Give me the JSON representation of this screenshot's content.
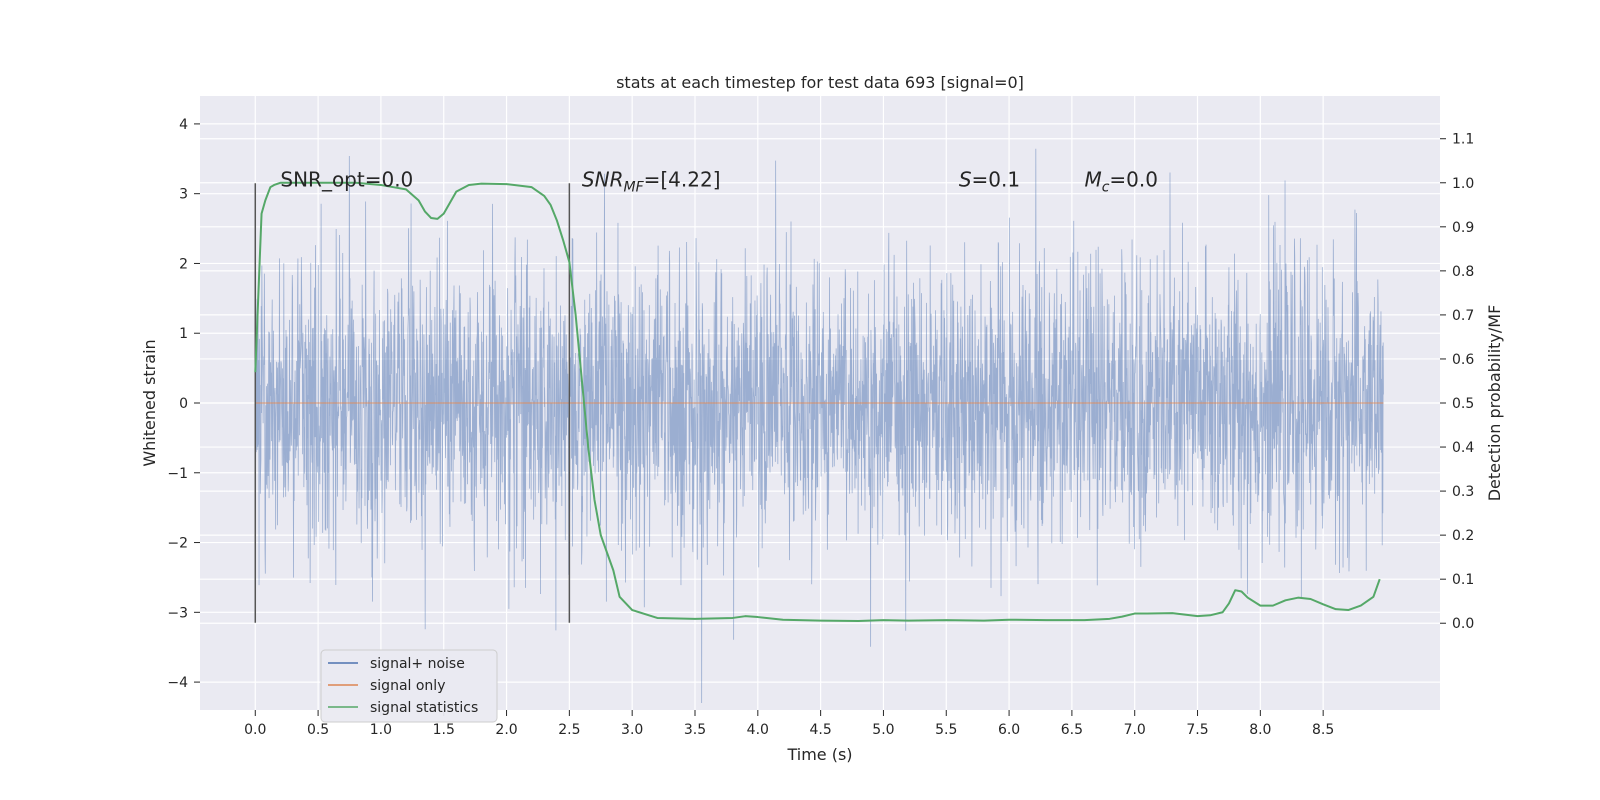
{
  "chart_data": {
    "type": "line",
    "title": "stats at each timestep for test data 693 [signal=0]",
    "xlabel": "Time (s)",
    "ylabel": "Whitened strain",
    "y2label": "Detection probability/MF",
    "xlim": [
      -0.44,
      9.43
    ],
    "ylim": [
      -4.4,
      4.4
    ],
    "y2lim": [
      -0.197,
      1.197
    ],
    "x_ticks": [
      0.0,
      0.5,
      1.0,
      1.5,
      2.0,
      2.5,
      3.0,
      3.5,
      4.0,
      4.5,
      5.0,
      5.5,
      6.0,
      6.5,
      7.0,
      7.5,
      8.0,
      8.5
    ],
    "x_tick_labels": [
      "0.0",
      "0.5",
      "1.0",
      "1.5",
      "2.0",
      "2.5",
      "3.0",
      "3.5",
      "4.0",
      "4.5",
      "5.0",
      "5.5",
      "6.0",
      "6.5",
      "7.0",
      "7.5",
      "8.0",
      "8.5"
    ],
    "y_ticks": [
      -4,
      -3,
      -2,
      -1,
      0,
      1,
      2,
      3,
      4
    ],
    "y_tick_labels": [
      "−4",
      "−3",
      "−2",
      "−1",
      "0",
      "1",
      "2",
      "3",
      "4"
    ],
    "y2_ticks": [
      0.0,
      0.1,
      0.2,
      0.3,
      0.4,
      0.5,
      0.6,
      0.7,
      0.8,
      0.9,
      1.0,
      1.1
    ],
    "y2_tick_labels": [
      "0.0",
      "0.1",
      "0.2",
      "0.3",
      "0.4",
      "0.5",
      "0.6",
      "0.7",
      "0.8",
      "0.9",
      "1.0",
      "1.1"
    ],
    "grid": true,
    "legend_position": "lower-left",
    "annotations": [
      {
        "text": "SNR_opt=0.0",
        "x": 0.2,
        "y": 3.2
      },
      {
        "text": "SNR_MF=[4.22]",
        "x": 2.6,
        "y": 3.2
      },
      {
        "text": "S=0.1",
        "x": 5.6,
        "y": 3.2
      },
      {
        "text": "M_c=0.0",
        "x": 6.6,
        "y": 3.2
      }
    ],
    "vlines": [
      {
        "x": 0.0,
        "ymin": -3.15,
        "ymax": 3.15,
        "color": "#555555"
      },
      {
        "x": 2.5,
        "ymin": -3.15,
        "ymax": 3.15,
        "color": "#555555"
      }
    ],
    "series": [
      {
        "name": "signal+ noise",
        "axis": "left",
        "color": "#4c72b0",
        "kind": "noise",
        "x_range": [
          0.0,
          8.98
        ],
        "sigma": 1.0,
        "peak_max": 4.03,
        "peak_min": -4.3
      },
      {
        "name": "signal only",
        "axis": "left",
        "color": "#dd8452",
        "x": [
          0.0,
          8.98
        ],
        "y": [
          0.0,
          0.0
        ]
      },
      {
        "name": "signal statistics",
        "axis": "right",
        "color": "#55a868",
        "x": [
          0.0,
          0.05,
          0.08,
          0.12,
          0.15,
          0.2,
          0.3,
          0.5,
          0.8,
          1.0,
          1.1,
          1.2,
          1.3,
          1.35,
          1.4,
          1.45,
          1.5,
          1.55,
          1.6,
          1.7,
          1.8,
          2.0,
          2.2,
          2.3,
          2.35,
          2.4,
          2.45,
          2.5,
          2.55,
          2.6,
          2.65,
          2.7,
          2.75,
          2.8,
          2.85,
          2.9,
          3.0,
          3.2,
          3.5,
          3.8,
          3.9,
          4.0,
          4.2,
          4.5,
          4.8,
          5.0,
          5.2,
          5.5,
          5.8,
          6.0,
          6.3,
          6.6,
          6.8,
          6.9,
          7.0,
          7.1,
          7.3,
          7.5,
          7.6,
          7.7,
          7.75,
          7.8,
          7.85,
          7.9,
          8.0,
          8.1,
          8.2,
          8.3,
          8.4,
          8.5,
          8.6,
          8.7,
          8.8,
          8.9,
          8.95
        ],
        "y": [
          0.57,
          0.93,
          0.96,
          0.99,
          0.995,
          1.0,
          1.0,
          1.0,
          1.0,
          0.995,
          0.99,
          0.985,
          0.96,
          0.935,
          0.92,
          0.918,
          0.93,
          0.955,
          0.98,
          0.995,
          0.998,
          0.997,
          0.99,
          0.97,
          0.95,
          0.915,
          0.87,
          0.82,
          0.7,
          0.55,
          0.4,
          0.28,
          0.2,
          0.16,
          0.12,
          0.06,
          0.03,
          0.012,
          0.01,
          0.012,
          0.016,
          0.014,
          0.008,
          0.006,
          0.005,
          0.007,
          0.006,
          0.007,
          0.006,
          0.008,
          0.007,
          0.007,
          0.01,
          0.015,
          0.022,
          0.022,
          0.023,
          0.016,
          0.018,
          0.025,
          0.045,
          0.075,
          0.072,
          0.058,
          0.04,
          0.04,
          0.052,
          0.058,
          0.055,
          0.043,
          0.032,
          0.03,
          0.04,
          0.06,
          0.1
        ]
      }
    ]
  }
}
